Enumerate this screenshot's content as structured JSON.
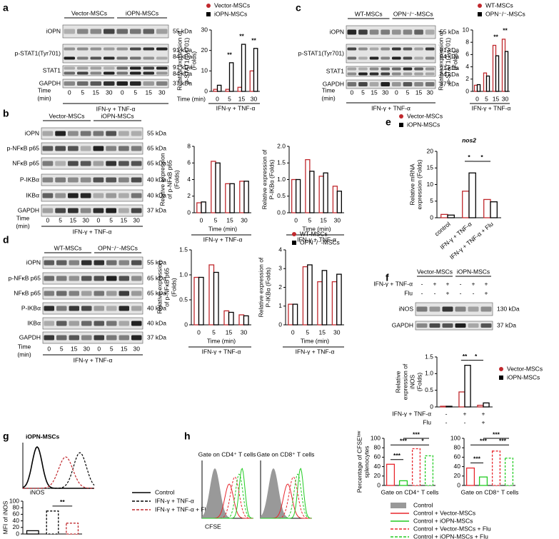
{
  "panel_labels": [
    "a",
    "b",
    "c",
    "d",
    "e",
    "f",
    "g",
    "h"
  ],
  "blots": [
    {
      "groups": [
        "Vector-MSCs",
        "iOPN-MSCs"
      ],
      "rows": [
        {
          "name": "iOPN",
          "sizes": [
            "55 kDa"
          ]
        },
        {
          "name": "p-STAT1(Tyr701)",
          "sizes": [
            "91 kDa",
            "84 kDa"
          ]
        },
        {
          "name": "STAT1",
          "sizes": [
            "91 kDa",
            "84 kDa"
          ]
        },
        {
          "name": "GAPDH",
          "sizes": [
            "37 kDa"
          ]
        }
      ],
      "time_label": [
        "Time",
        "(min)"
      ],
      "lanes": [
        "0",
        "5",
        "15",
        "30",
        "0",
        "5",
        "15",
        "30"
      ],
      "treatment": "IFN-γ + TNF-α"
    },
    {
      "groups": [
        "WT-MSCs",
        "OPN⁻/⁻-MSCs"
      ],
      "rows": [
        {
          "name": "iOPN",
          "sizes": [
            "55 kDa"
          ]
        },
        {
          "name": "p-STAT1(Tyr701)",
          "sizes": [
            "91 kDa",
            "84 kDa"
          ]
        },
        {
          "name": "STAT1",
          "sizes": [
            "91 kDa",
            "84 kDa"
          ]
        },
        {
          "name": "GAPDH",
          "sizes": [
            "37 kDa"
          ]
        }
      ],
      "time_label": [
        "Time",
        "(min)"
      ],
      "lanes": [
        "0",
        "5",
        "15",
        "30",
        "0",
        "5",
        "15",
        "30"
      ],
      "treatment": "IFN-γ + TNF-α"
    },
    {
      "groups": [
        "Vector-MSCs",
        "iOPN-MSCs"
      ],
      "rows": [
        {
          "name": "iOPN",
          "sizes": [
            "55 kDa"
          ]
        },
        {
          "name": "p-NFκB p65",
          "sizes": [
            "65 kDa"
          ]
        },
        {
          "name": "NFκB p65",
          "sizes": [
            "65 kDa"
          ]
        },
        {
          "name": "P-IKBα",
          "sizes": [
            "40 kDa"
          ]
        },
        {
          "name": "IKBα",
          "sizes": [
            "40 kDa"
          ]
        },
        {
          "name": "GAPDH",
          "sizes": [
            "37 kDa"
          ]
        }
      ],
      "time_label": [
        "Time",
        "(min)"
      ],
      "lanes": [
        "0",
        "5",
        "15",
        "30",
        "0",
        "5",
        "15",
        "30"
      ],
      "treatment": "IFN-γ + TNF-α"
    },
    {
      "groups": [
        "WT-MSCs",
        "OPN⁻/⁻-MSCs"
      ],
      "rows": [
        {
          "name": "iOPN",
          "sizes": [
            "55 kDa"
          ]
        },
        {
          "name": "p-NFκB p65",
          "sizes": [
            "65 kDa"
          ]
        },
        {
          "name": "NFκB p65",
          "sizes": [
            "65 kDa"
          ]
        },
        {
          "name": "P-IKBα",
          "sizes": [
            "40 kDa"
          ]
        },
        {
          "name": "IKBα",
          "sizes": [
            "40 kDa"
          ]
        },
        {
          "name": "GAPDH",
          "sizes": [
            "37 kDa"
          ]
        }
      ],
      "time_label": [
        "Time",
        "(min)"
      ],
      "lanes": [
        "0",
        "5",
        "15",
        "30",
        "0",
        "5",
        "15",
        "30"
      ],
      "treatment": "IFN-γ + TNF-α"
    },
    {
      "groups": [
        "Vector-MSCs",
        "iOPN-MSCs"
      ],
      "conditions": [
        {
          "name": "IFN-γ + TNF-α",
          "marks": [
            "-",
            "+",
            "+",
            "-",
            "+",
            "+"
          ]
        },
        {
          "name": "Flu",
          "marks": [
            "-",
            "-",
            "+",
            "-",
            "-",
            "+"
          ]
        }
      ],
      "rows": [
        {
          "name": "iNOS",
          "sizes": [
            "130 kDa"
          ]
        },
        {
          "name": "GAPDH",
          "sizes": [
            "37 kDa"
          ]
        }
      ]
    }
  ],
  "chart_data": [
    {
      "type": "bar",
      "ylabel": [
        "Relative expression of",
        "p-STAT1(Tyr701)",
        "(Folds)"
      ],
      "xlabel": "Time (min)",
      "caption": "IFN-γ + TNF-α",
      "categories": [
        "0",
        "5",
        "15",
        "30"
      ],
      "series": [
        {
          "name": "Vector-MSCs",
          "color": "#c0282d",
          "marker": "circle",
          "values": [
            1,
            1,
            2,
            10
          ]
        },
        {
          "name": "iOPN-MSCs",
          "color": "#000000",
          "marker": "square",
          "values": [
            3,
            14,
            23,
            21
          ]
        }
      ],
      "ylim": [
        0,
        30
      ],
      "yticks": [
        0,
        10,
        20,
        30
      ],
      "annotations": [
        "**",
        "**",
        "**"
      ],
      "legend": "top"
    },
    {
      "type": "bar",
      "ylabel": [
        "Relative expression of",
        "p-STAT1(Tyr701)",
        "(Folds)"
      ],
      "caption": "IFN-γ + TNF-α",
      "categories": [
        "0",
        "5",
        "15",
        "30"
      ],
      "series": [
        {
          "name": "WT-MSCs",
          "color": "#c0282d",
          "marker": "circle",
          "values": [
            1,
            3,
            7.5,
            8.5
          ]
        },
        {
          "name": "OPN⁻/⁻-MSCs",
          "color": "#000000",
          "marker": "square",
          "values": [
            1.1,
            2.5,
            5.8,
            6.5
          ]
        }
      ],
      "ylim": [
        0,
        10
      ],
      "yticks": [
        0,
        2,
        4,
        6,
        8,
        10
      ],
      "annotations": [
        "**",
        "**"
      ],
      "legend": "top"
    },
    {
      "type": "bar",
      "ylabel": [
        "Relative expression",
        "of p-NFκB p65",
        "(Folds)"
      ],
      "xlabel": "Time (min)",
      "caption": "IFN-γ + TNF-α",
      "categories": [
        "0",
        "5",
        "15",
        "30"
      ],
      "series": [
        {
          "color": "#c0282d",
          "values": [
            1.2,
            6.2,
            3.5,
            3.8
          ]
        },
        {
          "color": "#000000",
          "values": [
            1.3,
            6.0,
            3.5,
            3.8
          ]
        }
      ],
      "ylim": [
        0,
        8
      ],
      "yticks": [
        0,
        2,
        4,
        6,
        8
      ]
    },
    {
      "type": "bar",
      "ylabel": [
        "Relative expression of",
        "P-IKBα (Folds)"
      ],
      "xlabel": "Time (min)",
      "caption": "IFN-γ + TNF-α",
      "categories": [
        "0",
        "5",
        "15",
        "30"
      ],
      "series": [
        {
          "color": "#c0282d",
          "values": [
            1.0,
            1.6,
            1.1,
            0.8
          ]
        },
        {
          "color": "#000000",
          "values": [
            1.0,
            1.25,
            1.2,
            0.65
          ]
        }
      ],
      "ylim": [
        0,
        2
      ],
      "yticks": [
        {
          "value": 0,
          "label": "0.0"
        },
        0.5,
        {
          "value": 1,
          "label": "1.0"
        },
        1.5,
        {
          "value": 2,
          "label": "2.0"
        }
      ]
    },
    {
      "type": "bar",
      "title": "nos2",
      "ylabel": [
        "Relative mRNA",
        "expression (Folds)"
      ],
      "categories": [
        "control",
        "IFN-γ + TNF-α",
        "IFN-γ + TNF-α + Flu"
      ],
      "series": [
        {
          "name": "Vector-MSCs",
          "color": "#c0282d",
          "marker": "circle",
          "values": [
            1,
            8,
            5.5
          ]
        },
        {
          "name": "iOPN-MSCs",
          "color": "#000000",
          "marker": "square",
          "values": [
            0.8,
            13.5,
            4.8
          ]
        }
      ],
      "ylim": [
        0,
        20
      ],
      "yticks": [
        0,
        5,
        10,
        15,
        20
      ],
      "annotations": [
        "*",
        "*"
      ],
      "legend": "top"
    },
    {
      "type": "bar",
      "ylabel": [
        "Relative expression",
        "of p-NFκB p65",
        "(Folds)"
      ],
      "xlabel": "Time (min)",
      "caption": "IFN-γ + TNF-α",
      "categories": [
        "0",
        "5",
        "15",
        "30"
      ],
      "series": [
        {
          "color": "#c0282d",
          "values": [
            0.95,
            1.2,
            0.28,
            0.2
          ]
        },
        {
          "color": "#000000",
          "values": [
            0.95,
            1.05,
            0.25,
            0.18
          ]
        }
      ],
      "ylim": [
        0,
        1.5
      ],
      "yticks": [
        0,
        0.5,
        {
          "value": 1,
          "label": "1.0"
        },
        1.5
      ]
    },
    {
      "type": "bar",
      "ylabel": [
        "Relative expression of",
        "P-IKBα (Folds)"
      ],
      "xlabel": "Time (min)",
      "caption": "IFN-γ + TNF-α",
      "categories": [
        "0",
        "5",
        "15",
        "30"
      ],
      "series": [
        {
          "name": "WT-MSCs",
          "color": "#c0282d",
          "marker": "circle",
          "values": [
            1.1,
            3.1,
            2.3,
            2.3
          ]
        },
        {
          "name": "OPN⁻/⁻-MSCs",
          "color": "#000000",
          "marker": "square",
          "values": [
            1.1,
            3.2,
            2.9,
            2.7
          ]
        }
      ],
      "ylim": [
        0,
        4
      ],
      "yticks": [
        0,
        1,
        2,
        3,
        4
      ],
      "legend": "top"
    },
    {
      "type": "bar",
      "ylabel": [
        "Relative",
        "expression of",
        "iNOS",
        "(Folds)"
      ],
      "categories": [
        null,
        null,
        null
      ],
      "conditions": [
        {
          "name": "IFN-γ + TNF-α",
          "marks": [
            "-",
            "+",
            "+"
          ]
        },
        {
          "name": "Flu",
          "marks": [
            "-",
            "-",
            "+"
          ]
        }
      ],
      "series": [
        {
          "name": "Vector-MSCs",
          "color": "#c0282d",
          "marker": "circle",
          "values": [
            0.02,
            0.45,
            0.05
          ]
        },
        {
          "name": "iOPN-MSCs",
          "color": "#000000",
          "marker": "square",
          "values": [
            0.02,
            1.25,
            0.12
          ]
        }
      ],
      "ylim": [
        0,
        1.5
      ],
      "yticks": [
        0,
        0.5,
        {
          "value": 1,
          "label": "1.0"
        },
        1.5
      ],
      "annotations": [
        "**",
        "*"
      ],
      "legend": "right"
    },
    {
      "type": "bar",
      "ylabel": [
        "MFI of iNOS"
      ],
      "categories": [
        null,
        null,
        null
      ],
      "values": [
        10,
        70,
        33
      ],
      "ylim": [
        0,
        100
      ],
      "yticks": [
        0,
        20,
        40,
        60,
        80,
        100
      ],
      "annotations": [
        "**"
      ],
      "legend_entries": [
        {
          "name": "Control",
          "color": "#000000",
          "dash": false
        },
        {
          "name": "IFN-γ + TNF-α",
          "color": "#000000",
          "dash": true
        },
        {
          "name": "IFN-γ + TNF-α + Flu",
          "color": "#c0282d",
          "dash": true
        }
      ]
    },
    {
      "type": "bar",
      "ylabel": [
        "Percentage of CFSEˡᵒʷ",
        "splenocytes"
      ],
      "xlabel": "Gate on CD4⁺ T cells",
      "categories": [
        null,
        null,
        null,
        null
      ],
      "values": [
        45,
        10,
        78,
        63
      ],
      "ylim": [
        0,
        100
      ],
      "yticks": [
        0,
        20,
        40,
        60,
        80,
        100
      ],
      "annotations": [
        "***",
        "***",
        "*",
        "***"
      ],
      "legend_entries": [
        {
          "name": "Control",
          "color": "#999999",
          "fill": true
        },
        {
          "name": "Control + Vector-MSCs",
          "color": "#e8262d",
          "dash": false
        },
        {
          "name": "Control + iOPN-MSCs",
          "color": "#22cc22",
          "dash": false
        },
        {
          "name": "Control + Vector-MSCs + Flu",
          "color": "#e8262d",
          "dash": true
        },
        {
          "name": "Control + iOPN-MSCs + Flu",
          "color": "#22cc22",
          "dash": true
        }
      ]
    },
    {
      "type": "bar",
      "xlabel": "Gate on CD8⁺ T cells",
      "categories": [
        null,
        null,
        null,
        null
      ],
      "values": [
        37,
        18,
        73,
        58
      ],
      "ylim": [
        0,
        100
      ],
      "yticks": [
        0,
        20,
        40,
        60,
        80,
        100
      ],
      "annotations": [
        "***",
        "***",
        "***",
        "***"
      ]
    }
  ],
  "flow": {
    "g_title": "iOPN-MSCs",
    "g_xlabel": "iNOS",
    "h_titles": [
      "Gate on CD4⁺ T cells",
      "Gate on CD8⁺ T cells"
    ],
    "h_xlabel": "CFSE"
  }
}
